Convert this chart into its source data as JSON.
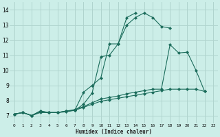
{
  "xlabel": "Humidex (Indice chaleur)",
  "bg_color": "#cceee8",
  "grid_color": "#b0d4ce",
  "line_color": "#1a6b5a",
  "xlim": [
    -0.5,
    23.5
  ],
  "ylim": [
    6.5,
    14.5
  ],
  "xticks": [
    0,
    1,
    2,
    3,
    4,
    5,
    6,
    7,
    8,
    9,
    10,
    11,
    12,
    13,
    14,
    15,
    16,
    17,
    18,
    19,
    20,
    21,
    22,
    23
  ],
  "yticks": [
    7,
    8,
    9,
    10,
    11,
    12,
    13,
    14
  ],
  "lines": [
    {
      "x": [
        0,
        1,
        2,
        3,
        4,
        5,
        6,
        7,
        8,
        9,
        10,
        11,
        12,
        13,
        14,
        15,
        16,
        17,
        18
      ],
      "y": [
        7.1,
        7.2,
        7.0,
        7.3,
        7.2,
        7.2,
        7.3,
        7.35,
        8.55,
        9.0,
        9.5,
        11.75,
        11.75,
        13.0,
        13.5,
        13.8,
        13.5,
        12.9,
        12.8
      ]
    },
    {
      "x": [
        0,
        1,
        2,
        3,
        4,
        5,
        6,
        7,
        8,
        9,
        10,
        11,
        12,
        13,
        14
      ],
      "y": [
        7.1,
        7.2,
        7.0,
        7.3,
        7.2,
        7.2,
        7.3,
        7.35,
        7.75,
        8.5,
        10.9,
        11.0,
        11.75,
        13.5,
        13.8
      ]
    },
    {
      "x": [
        0,
        1,
        2,
        3,
        4,
        5,
        6,
        7,
        8,
        9,
        10,
        11,
        12,
        13,
        14,
        15,
        16,
        17,
        18,
        19,
        20,
        21,
        22
      ],
      "y": [
        7.1,
        7.2,
        7.0,
        7.25,
        7.2,
        7.2,
        7.3,
        7.4,
        7.6,
        7.85,
        8.1,
        8.2,
        8.3,
        8.45,
        8.55,
        8.65,
        8.75,
        8.75,
        11.7,
        11.15,
        11.2,
        10.0,
        8.6
      ]
    },
    {
      "x": [
        0,
        1,
        2,
        3,
        4,
        5,
        6,
        7,
        8,
        9,
        10,
        11,
        12,
        13,
        14,
        15,
        16,
        17,
        18,
        19,
        20,
        21,
        22
      ],
      "y": [
        7.1,
        7.2,
        7.0,
        7.2,
        7.2,
        7.2,
        7.25,
        7.35,
        7.55,
        7.75,
        7.95,
        8.05,
        8.15,
        8.25,
        8.35,
        8.45,
        8.55,
        8.65,
        8.75,
        8.75,
        8.75,
        8.75,
        8.6
      ]
    }
  ]
}
